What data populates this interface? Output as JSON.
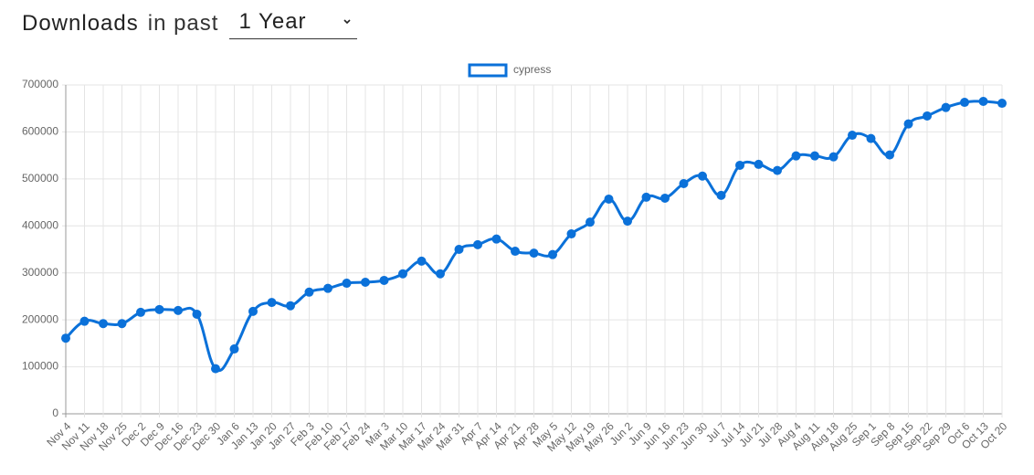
{
  "header": {
    "title": "Downloads",
    "subtitle": "in past",
    "period": "1 Year"
  },
  "chart_data": {
    "type": "line",
    "categories": [
      "Nov 4",
      "Nov 11",
      "Nov 18",
      "Nov 25",
      "Dec 2",
      "Dec 9",
      "Dec 16",
      "Dec 23",
      "Dec 30",
      "Jan 6",
      "Jan 13",
      "Jan 20",
      "Jan 27",
      "Feb 3",
      "Feb 10",
      "Feb 17",
      "Feb 24",
      "Mar 3",
      "Mar 10",
      "Mar 17",
      "Mar 24",
      "Mar 31",
      "Apr 7",
      "Apr 14",
      "Apr 21",
      "Apr 28",
      "May 5",
      "May 12",
      "May 19",
      "May 26",
      "Jun 2",
      "Jun 9",
      "Jun 16",
      "Jun 23",
      "Jun 30",
      "Jul 7",
      "Jul 14",
      "Jul 21",
      "Jul 28",
      "Aug 4",
      "Aug 11",
      "Aug 18",
      "Aug 25",
      "Sep 1",
      "Sep 8",
      "Sep 15",
      "Sep 22",
      "Sep 29",
      "Oct 6",
      "Oct 13",
      "Oct 20"
    ],
    "series": [
      {
        "name": "cypress",
        "color": "#0b71d9",
        "values": [
          161000,
          197000,
          192000,
          192000,
          216000,
          222000,
          220000,
          212000,
          96000,
          138000,
          218000,
          237000,
          230000,
          259000,
          267000,
          278000,
          280000,
          284000,
          298000,
          325000,
          298000,
          350000,
          360000,
          372000,
          346000,
          342000,
          339000,
          383000,
          408000,
          457000,
          410000,
          461000,
          459000,
          490000,
          506000,
          465000,
          529000,
          531000,
          518000,
          549000,
          549000,
          547000,
          593000,
          586000,
          551000,
          617000,
          634000,
          652000,
          663000,
          665000,
          661000
        ]
      }
    ],
    "ylim": [
      0,
      700000
    ],
    "yticks": [
      0,
      100000,
      200000,
      300000,
      400000,
      500000,
      600000,
      700000
    ],
    "grid": true,
    "legend": "top"
  }
}
